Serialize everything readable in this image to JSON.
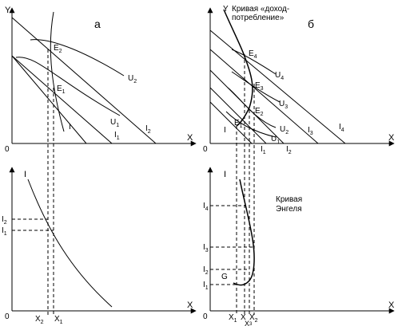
{
  "panel_a": {
    "letter": "а",
    "top": {
      "y_axis": "Y",
      "x_axis": "X",
      "origin": "0",
      "points": [
        "E",
        "E"
      ],
      "point_subs": [
        "2",
        "1"
      ],
      "curves": [
        "U",
        "U"
      ],
      "curve_subs": [
        "2",
        "1"
      ],
      "budget_lines": [
        "I",
        "I",
        "I"
      ],
      "budget_subs": [
        "",
        "1",
        "2"
      ]
    },
    "bottom": {
      "y_axis": "I",
      "x_axis": "X",
      "origin": "0",
      "y_ticks": [
        "I",
        "I"
      ],
      "y_tick_subs": [
        "2",
        "1"
      ],
      "x_ticks": [
        "X",
        "X"
      ],
      "x_tick_subs": [
        "2",
        "1"
      ]
    }
  },
  "panel_b": {
    "letter": "б",
    "top": {
      "y_axis": "Y",
      "x_axis": "X",
      "origin": "0",
      "icc_label_line1": "Кривая «доход-",
      "icc_label_line2": "потребление»",
      "points": [
        "E",
        "E",
        "E",
        "E"
      ],
      "point_subs": [
        "4",
        "3",
        "2",
        "1"
      ],
      "curves": [
        "U",
        "U",
        "U",
        "U"
      ],
      "curve_subs": [
        "4",
        "3",
        "2",
        "1"
      ],
      "budget_lines": [
        "I",
        "I",
        "I",
        "I",
        "I"
      ],
      "budget_subs": [
        "",
        "1",
        "2",
        "3",
        "4"
      ]
    },
    "bottom": {
      "y_axis": "I",
      "x_axis": "X",
      "origin": "0",
      "engel_line1": "Кривая",
      "engel_line2": "Энгеля",
      "point_g": "G",
      "y_ticks": [
        "I",
        "I",
        "I",
        "I"
      ],
      "y_tick_subs": [
        "4",
        "3",
        "2",
        "1"
      ],
      "x_ticks": [
        "X",
        "X",
        "X",
        "X"
      ],
      "x_tick_subs": [
        "1",
        "",
        "2",
        "3"
      ]
    }
  }
}
